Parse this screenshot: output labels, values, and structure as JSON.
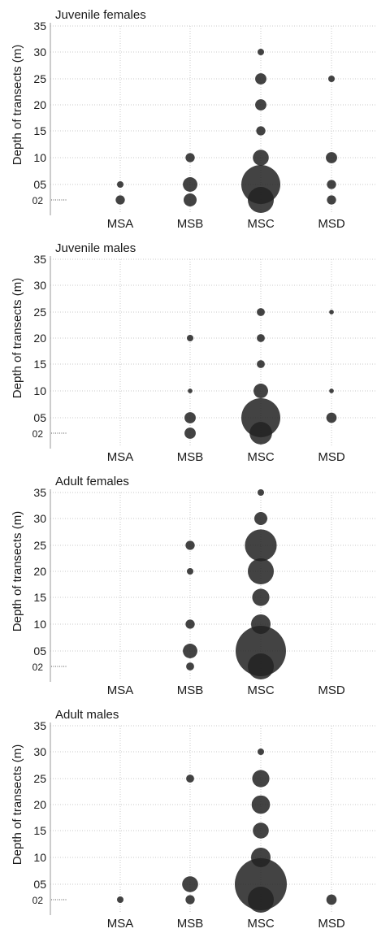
{
  "chart_data": [
    {
      "type": "scatter",
      "title": "Juvenile females",
      "ylabel": "Depth of transects (m)",
      "categories": [
        "MSA",
        "MSB",
        "MSC",
        "MSD"
      ],
      "ytick_labels": [
        "35",
        "30",
        "25",
        "20",
        "15",
        "10",
        "05",
        "02"
      ],
      "points": [
        {
          "site": "MSA",
          "depth": 5,
          "size": 1
        },
        {
          "site": "MSA",
          "depth": 2,
          "size": 2
        },
        {
          "site": "MSB",
          "depth": 10,
          "size": 2
        },
        {
          "site": "MSB",
          "depth": 5,
          "size": 5
        },
        {
          "site": "MSB",
          "depth": 2,
          "size": 4
        },
        {
          "site": "MSC",
          "depth": 30,
          "size": 1
        },
        {
          "site": "MSC",
          "depth": 25,
          "size": 3
        },
        {
          "site": "MSC",
          "depth": 20,
          "size": 3
        },
        {
          "site": "MSC",
          "depth": 15,
          "size": 2
        },
        {
          "site": "MSC",
          "depth": 10,
          "size": 6
        },
        {
          "site": "MSC",
          "depth": 5,
          "size": 36
        },
        {
          "site": "MSC",
          "depth": 2,
          "size": 16
        },
        {
          "site": "MSD",
          "depth": 25,
          "size": 1
        },
        {
          "site": "MSD",
          "depth": 10,
          "size": 3
        },
        {
          "site": "MSD",
          "depth": 5,
          "size": 2
        },
        {
          "site": "MSD",
          "depth": 2,
          "size": 2
        }
      ]
    },
    {
      "type": "scatter",
      "title": "Juvenile males",
      "ylabel": "Depth of transects (m)",
      "categories": [
        "MSA",
        "MSB",
        "MSC",
        "MSD"
      ],
      "ytick_labels": [
        "35",
        "30",
        "25",
        "20",
        "15",
        "10",
        "05",
        "02"
      ],
      "points": [
        {
          "site": "MSB",
          "depth": 20,
          "size": 1
        },
        {
          "site": "MSB",
          "depth": 10,
          "size": 0.5
        },
        {
          "site": "MSB",
          "depth": 5,
          "size": 3
        },
        {
          "site": "MSB",
          "depth": 2,
          "size": 3
        },
        {
          "site": "MSC",
          "depth": 25,
          "size": 1.5
        },
        {
          "site": "MSC",
          "depth": 20,
          "size": 1.5
        },
        {
          "site": "MSC",
          "depth": 15,
          "size": 1.5
        },
        {
          "site": "MSC",
          "depth": 10,
          "size": 5
        },
        {
          "site": "MSC",
          "depth": 5,
          "size": 36
        },
        {
          "site": "MSC",
          "depth": 2,
          "size": 12
        },
        {
          "site": "MSD",
          "depth": 25,
          "size": 0.5
        },
        {
          "site": "MSD",
          "depth": 10,
          "size": 0.5
        },
        {
          "site": "MSD",
          "depth": 5,
          "size": 2.5
        }
      ]
    },
    {
      "type": "scatter",
      "title": "Adult females",
      "ylabel": "Depth of transects (m)",
      "categories": [
        "MSA",
        "MSB",
        "MSC",
        "MSD"
      ],
      "ytick_labels": [
        "35",
        "30",
        "25",
        "20",
        "15",
        "10",
        "05",
        "02"
      ],
      "points": [
        {
          "site": "MSB",
          "depth": 25,
          "size": 2
        },
        {
          "site": "MSB",
          "depth": 20,
          "size": 1
        },
        {
          "site": "MSB",
          "depth": 10,
          "size": 2
        },
        {
          "site": "MSB",
          "depth": 5,
          "size": 5
        },
        {
          "site": "MSB",
          "depth": 2,
          "size": 1.5
        },
        {
          "site": "MSC",
          "depth": 35,
          "size": 1
        },
        {
          "site": "MSC",
          "depth": 30,
          "size": 4
        },
        {
          "site": "MSC",
          "depth": 25,
          "size": 24
        },
        {
          "site": "MSC",
          "depth": 20,
          "size": 16
        },
        {
          "site": "MSC",
          "depth": 15,
          "size": 7
        },
        {
          "site": "MSC",
          "depth": 10,
          "size": 9
        },
        {
          "site": "MSC",
          "depth": 5,
          "size": 60
        },
        {
          "site": "MSC",
          "depth": 2,
          "size": 16
        }
      ]
    },
    {
      "type": "scatter",
      "title": "Adult males",
      "ylabel": "Depth of transects (m)",
      "categories": [
        "MSA",
        "MSB",
        "MSC",
        "MSD"
      ],
      "ytick_labels": [
        "35",
        "30",
        "25",
        "20",
        "15",
        "10",
        "05",
        "02"
      ],
      "points": [
        {
          "site": "MSA",
          "depth": 2,
          "size": 1
        },
        {
          "site": "MSB",
          "depth": 25,
          "size": 1.5
        },
        {
          "site": "MSB",
          "depth": 5,
          "size": 6
        },
        {
          "site": "MSB",
          "depth": 2,
          "size": 2
        },
        {
          "site": "MSC",
          "depth": 30,
          "size": 1
        },
        {
          "site": "MSC",
          "depth": 25,
          "size": 7
        },
        {
          "site": "MSC",
          "depth": 20,
          "size": 8
        },
        {
          "site": "MSC",
          "depth": 15,
          "size": 6
        },
        {
          "site": "MSC",
          "depth": 10,
          "size": 9
        },
        {
          "site": "MSC",
          "depth": 5,
          "size": 64
        },
        {
          "site": "MSC",
          "depth": 2,
          "size": 16
        },
        {
          "site": "MSD",
          "depth": 2,
          "size": 2.5
        }
      ]
    }
  ]
}
